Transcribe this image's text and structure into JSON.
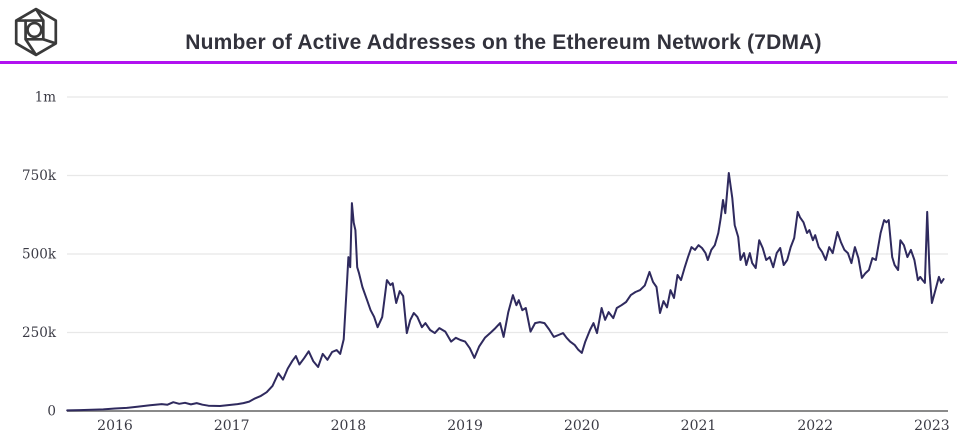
{
  "header": {
    "logo_name": "glassnode-cube-logo",
    "title": "Number of Active Addresses on the Ethereum Network (7DMA)"
  },
  "colors": {
    "accent_divider": "#b112f0",
    "series_line": "#2f2a5e",
    "gridline": "#e8e8e8",
    "axis_line": "#8a8a8a",
    "tick_text": "#3b3b45",
    "title_text": "#32323c",
    "logo_stroke": "#3a3a3a",
    "background": "#ffffff"
  },
  "chart_data": {
    "type": "line",
    "title": "Number of Active Addresses on the Ethereum Network (7DMA)",
    "xlabel": "",
    "ylabel": "",
    "unit": "active addresses (values in thousands)",
    "grid": "horizontal",
    "legend": "none",
    "x_range": [
      2015.59,
      2023.1
    ],
    "ylim_thousands": [
      0,
      1000
    ],
    "y_ticks": [
      {
        "label": "1m",
        "value": 1000
      },
      {
        "label": "750k",
        "value": 750
      },
      {
        "label": "500k",
        "value": 500
      },
      {
        "label": "250k",
        "value": 250
      },
      {
        "label": "0",
        "value": 0
      }
    ],
    "x_ticks": [
      {
        "label": "2016",
        "year": 2016
      },
      {
        "label": "2017",
        "year": 2017
      },
      {
        "label": "2018",
        "year": 2018
      },
      {
        "label": "2019",
        "year": 2019
      },
      {
        "label": "2020",
        "year": 2020
      },
      {
        "label": "2021",
        "year": 2021
      },
      {
        "label": "2022",
        "year": 2022
      },
      {
        "label": "2023",
        "year": 2023
      }
    ],
    "series": [
      {
        "name": "Active Addresses (7DMA)",
        "points": [
          [
            2015.59,
            2
          ],
          [
            2015.7,
            3
          ],
          [
            2015.8,
            4
          ],
          [
            2015.9,
            5
          ],
          [
            2016.0,
            8
          ],
          [
            2016.1,
            10
          ],
          [
            2016.2,
            14
          ],
          [
            2016.3,
            18
          ],
          [
            2016.4,
            22
          ],
          [
            2016.45,
            20
          ],
          [
            2016.5,
            28
          ],
          [
            2016.55,
            23
          ],
          [
            2016.6,
            26
          ],
          [
            2016.65,
            21
          ],
          [
            2016.7,
            25
          ],
          [
            2016.75,
            20
          ],
          [
            2016.8,
            17
          ],
          [
            2016.9,
            16
          ],
          [
            2017.0,
            20
          ],
          [
            2017.05,
            22
          ],
          [
            2017.1,
            25
          ],
          [
            2017.15,
            30
          ],
          [
            2017.2,
            40
          ],
          [
            2017.25,
            48
          ],
          [
            2017.3,
            60
          ],
          [
            2017.35,
            80
          ],
          [
            2017.4,
            120
          ],
          [
            2017.44,
            100
          ],
          [
            2017.48,
            135
          ],
          [
            2017.52,
            160
          ],
          [
            2017.55,
            175
          ],
          [
            2017.58,
            148
          ],
          [
            2017.62,
            168
          ],
          [
            2017.66,
            190
          ],
          [
            2017.7,
            158
          ],
          [
            2017.74,
            140
          ],
          [
            2017.78,
            182
          ],
          [
            2017.82,
            163
          ],
          [
            2017.86,
            188
          ],
          [
            2017.9,
            194
          ],
          [
            2017.93,
            182
          ],
          [
            2017.96,
            228
          ],
          [
            2017.99,
            420
          ],
          [
            2018.0,
            490
          ],
          [
            2018.015,
            458
          ],
          [
            2018.03,
            662
          ],
          [
            2018.045,
            600
          ],
          [
            2018.06,
            576
          ],
          [
            2018.075,
            458
          ],
          [
            2018.09,
            440
          ],
          [
            2018.12,
            395
          ],
          [
            2018.16,
            353
          ],
          [
            2018.19,
            321
          ],
          [
            2018.22,
            300
          ],
          [
            2018.25,
            267
          ],
          [
            2018.29,
            299
          ],
          [
            2018.33,
            417
          ],
          [
            2018.36,
            401
          ],
          [
            2018.38,
            407
          ],
          [
            2018.41,
            344
          ],
          [
            2018.44,
            382
          ],
          [
            2018.47,
            366
          ],
          [
            2018.5,
            248
          ],
          [
            2018.53,
            290
          ],
          [
            2018.56,
            312
          ],
          [
            2018.59,
            300
          ],
          [
            2018.63,
            267
          ],
          [
            2018.66,
            280
          ],
          [
            2018.7,
            258
          ],
          [
            2018.74,
            248
          ],
          [
            2018.78,
            264
          ],
          [
            2018.83,
            253
          ],
          [
            2018.88,
            221
          ],
          [
            2018.92,
            233
          ],
          [
            2018.96,
            226
          ],
          [
            2019.0,
            221
          ],
          [
            2019.04,
            200
          ],
          [
            2019.08,
            169
          ],
          [
            2019.12,
            205
          ],
          [
            2019.17,
            233
          ],
          [
            2019.22,
            250
          ],
          [
            2019.26,
            264
          ],
          [
            2019.3,
            280
          ],
          [
            2019.33,
            236
          ],
          [
            2019.37,
            315
          ],
          [
            2019.41,
            369
          ],
          [
            2019.44,
            337
          ],
          [
            2019.46,
            353
          ],
          [
            2019.49,
            321
          ],
          [
            2019.52,
            328
          ],
          [
            2019.56,
            253
          ],
          [
            2019.6,
            280
          ],
          [
            2019.64,
            283
          ],
          [
            2019.68,
            280
          ],
          [
            2019.72,
            260
          ],
          [
            2019.76,
            236
          ],
          [
            2019.8,
            242
          ],
          [
            2019.84,
            248
          ],
          [
            2019.87,
            233
          ],
          [
            2019.9,
            221
          ],
          [
            2019.94,
            210
          ],
          [
            2019.97,
            195
          ],
          [
            2020.0,
            185
          ],
          [
            2020.03,
            221
          ],
          [
            2020.07,
            258
          ],
          [
            2020.1,
            280
          ],
          [
            2020.13,
            248
          ],
          [
            2020.17,
            328
          ],
          [
            2020.2,
            290
          ],
          [
            2020.23,
            315
          ],
          [
            2020.27,
            296
          ],
          [
            2020.3,
            328
          ],
          [
            2020.34,
            337
          ],
          [
            2020.38,
            347
          ],
          [
            2020.42,
            369
          ],
          [
            2020.46,
            379
          ],
          [
            2020.5,
            385
          ],
          [
            2020.54,
            400
          ],
          [
            2020.58,
            443
          ],
          [
            2020.61,
            411
          ],
          [
            2020.64,
            395
          ],
          [
            2020.67,
            312
          ],
          [
            2020.7,
            350
          ],
          [
            2020.73,
            330
          ],
          [
            2020.76,
            385
          ],
          [
            2020.79,
            360
          ],
          [
            2020.82,
            433
          ],
          [
            2020.85,
            417
          ],
          [
            2020.88,
            455
          ],
          [
            2020.91,
            490
          ],
          [
            2020.94,
            522
          ],
          [
            2020.97,
            513
          ],
          [
            2021.0,
            528
          ],
          [
            2021.03,
            519
          ],
          [
            2021.06,
            503
          ],
          [
            2021.08,
            481
          ],
          [
            2021.11,
            513
          ],
          [
            2021.14,
            528
          ],
          [
            2021.17,
            567
          ],
          [
            2021.19,
            614
          ],
          [
            2021.21,
            672
          ],
          [
            2021.23,
            630
          ],
          [
            2021.26,
            758
          ],
          [
            2021.29,
            678
          ],
          [
            2021.31,
            592
          ],
          [
            2021.34,
            554
          ],
          [
            2021.36,
            481
          ],
          [
            2021.39,
            503
          ],
          [
            2021.41,
            465
          ],
          [
            2021.44,
            503
          ],
          [
            2021.46,
            471
          ],
          [
            2021.49,
            455
          ],
          [
            2021.52,
            544
          ],
          [
            2021.55,
            519
          ],
          [
            2021.58,
            481
          ],
          [
            2021.61,
            490
          ],
          [
            2021.64,
            458
          ],
          [
            2021.67,
            503
          ],
          [
            2021.7,
            519
          ],
          [
            2021.73,
            465
          ],
          [
            2021.76,
            481
          ],
          [
            2021.79,
            522
          ],
          [
            2021.82,
            551
          ],
          [
            2021.85,
            634
          ],
          [
            2021.87,
            617
          ],
          [
            2021.9,
            601
          ],
          [
            2021.93,
            567
          ],
          [
            2021.95,
            576
          ],
          [
            2021.98,
            544
          ],
          [
            2022.0,
            560
          ],
          [
            2022.03,
            522
          ],
          [
            2022.06,
            506
          ],
          [
            2022.09,
            481
          ],
          [
            2022.12,
            522
          ],
          [
            2022.15,
            503
          ],
          [
            2022.19,
            570
          ],
          [
            2022.22,
            538
          ],
          [
            2022.25,
            513
          ],
          [
            2022.28,
            503
          ],
          [
            2022.31,
            471
          ],
          [
            2022.34,
            522
          ],
          [
            2022.37,
            487
          ],
          [
            2022.4,
            424
          ],
          [
            2022.43,
            439
          ],
          [
            2022.46,
            449
          ],
          [
            2022.49,
            487
          ],
          [
            2022.52,
            481
          ],
          [
            2022.56,
            567
          ],
          [
            2022.59,
            608
          ],
          [
            2022.61,
            601
          ],
          [
            2022.63,
            608
          ],
          [
            2022.66,
            490
          ],
          [
            2022.68,
            465
          ],
          [
            2022.71,
            449
          ],
          [
            2022.73,
            544
          ],
          [
            2022.76,
            528
          ],
          [
            2022.79,
            490
          ],
          [
            2022.82,
            513
          ],
          [
            2022.85,
            481
          ],
          [
            2022.88,
            417
          ],
          [
            2022.9,
            427
          ],
          [
            2022.92,
            417
          ],
          [
            2022.94,
            408
          ],
          [
            2022.96,
            634
          ],
          [
            2022.98,
            439
          ],
          [
            2023.0,
            344
          ],
          [
            2023.03,
            385
          ],
          [
            2023.06,
            427
          ],
          [
            2023.08,
            408
          ],
          [
            2023.1,
            420
          ]
        ]
      }
    ]
  }
}
